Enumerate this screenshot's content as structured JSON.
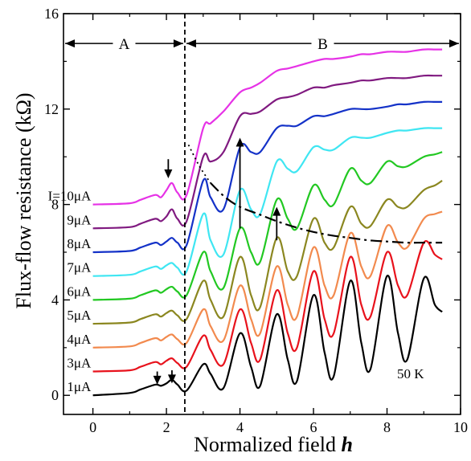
{
  "chart_data": {
    "type": "line",
    "xlabel": "Normalized field h",
    "xlabel_main": "Normalized field ",
    "xlabel_var": "h",
    "ylabel": "Flux-flow resistance (kΩ)",
    "xlim": [
      -0.8,
      10
    ],
    "ylim": [
      -0.8,
      16
    ],
    "xticks": [
      0,
      2,
      4,
      6,
      8,
      10
    ],
    "yticks": [
      0,
      4,
      8,
      12,
      16
    ],
    "grid": false,
    "legend": "none",
    "temperature_label": "50 K",
    "region_A": "A",
    "region_B": "B",
    "region_boundary_h": 2.5,
    "series": [
      {
        "name": "1μA",
        "label": "1μA",
        "baseline": 0.0,
        "color": "#000000",
        "x": [
          0,
          1.0,
          1.3,
          1.7,
          1.85,
          2.0,
          2.15,
          2.3,
          2.55,
          3.0,
          3.2,
          3.55,
          4.0,
          4.3,
          4.55,
          5.0,
          5.3,
          5.55,
          6.0,
          6.3,
          6.55,
          7.0,
          7.3,
          7.55,
          8.0,
          8.3,
          8.55,
          9.0,
          9.3,
          9.5
        ],
        "y": [
          0.0,
          0.1,
          0.25,
          0.45,
          0.4,
          0.5,
          0.65,
          0.45,
          0.2,
          1.3,
          0.9,
          0.3,
          2.6,
          1.2,
          0.4,
          3.4,
          1.5,
          0.6,
          4.2,
          1.8,
          0.8,
          4.8,
          2.2,
          1.1,
          5.0,
          2.6,
          1.5,
          4.9,
          3.8,
          3.5
        ]
      },
      {
        "name": "3μA",
        "label": "3μA",
        "baseline": 1.0,
        "color": "#e8121c",
        "x": [
          0,
          1.0,
          1.3,
          1.7,
          1.85,
          2.0,
          2.15,
          2.3,
          2.55,
          3.0,
          3.2,
          3.55,
          4.0,
          4.3,
          4.55,
          5.0,
          5.3,
          5.55,
          6.0,
          6.3,
          6.55,
          7.0,
          7.3,
          7.55,
          8.0,
          8.3,
          8.55,
          9.0,
          9.3,
          9.5
        ],
        "y": [
          1.0,
          1.05,
          1.2,
          1.4,
          1.3,
          1.45,
          1.55,
          1.35,
          1.2,
          2.5,
          1.9,
          1.3,
          3.6,
          2.2,
          1.5,
          4.4,
          2.6,
          2.0,
          5.2,
          3.2,
          2.6,
          5.8,
          3.8,
          3.3,
          6.0,
          4.6,
          4.2,
          6.4,
          5.9,
          5.7
        ]
      },
      {
        "name": "4μA",
        "label": "4μA",
        "baseline": 2.0,
        "color": "#f28a4e",
        "x": [
          0,
          1.0,
          1.3,
          1.7,
          1.85,
          2.0,
          2.15,
          2.3,
          2.55,
          3.0,
          3.2,
          3.55,
          4.0,
          4.3,
          4.55,
          5.0,
          5.3,
          5.55,
          6.0,
          6.3,
          6.55,
          7.0,
          7.3,
          7.55,
          8.0,
          8.3,
          8.55,
          9.0,
          9.3,
          9.5
        ],
        "y": [
          2.0,
          2.05,
          2.2,
          2.4,
          2.3,
          2.45,
          2.55,
          2.35,
          2.2,
          3.6,
          2.9,
          2.3,
          4.6,
          3.2,
          2.6,
          5.4,
          3.8,
          3.3,
          6.2,
          4.6,
          4.2,
          6.8,
          5.4,
          5.0,
          7.1,
          6.4,
          6.2,
          7.4,
          7.6,
          7.7
        ]
      },
      {
        "name": "5μA",
        "label": "5μA",
        "baseline": 3.0,
        "color": "#8b8720",
        "x": [
          0,
          1.0,
          1.3,
          1.7,
          1.85,
          2.0,
          2.15,
          2.3,
          2.55,
          3.0,
          3.2,
          3.55,
          4.0,
          4.3,
          4.55,
          5.0,
          5.3,
          5.55,
          6.0,
          6.3,
          6.55,
          7.0,
          7.3,
          7.55,
          8.0,
          8.3,
          8.55,
          9.0,
          9.3,
          9.5
        ],
        "y": [
          3.0,
          3.05,
          3.2,
          3.4,
          3.3,
          3.45,
          3.55,
          3.35,
          3.2,
          4.8,
          4.0,
          3.3,
          5.8,
          4.2,
          3.7,
          6.6,
          5.2,
          5.0,
          7.4,
          6.4,
          6.2,
          7.9,
          7.2,
          7.1,
          8.2,
          7.9,
          7.9,
          8.6,
          8.8,
          9.0
        ]
      },
      {
        "name": "6μA",
        "label": "6μA",
        "baseline": 4.0,
        "color": "#22c822",
        "x": [
          0,
          1.0,
          1.3,
          1.7,
          1.85,
          2.0,
          2.15,
          2.3,
          2.55,
          3.0,
          3.2,
          3.55,
          4.0,
          4.3,
          4.55,
          5.0,
          5.3,
          5.55,
          6.0,
          6.3,
          6.55,
          7.0,
          7.3,
          7.55,
          8.0,
          8.3,
          8.55,
          9.0,
          9.3,
          9.5
        ],
        "y": [
          4.0,
          4.05,
          4.2,
          4.4,
          4.3,
          4.45,
          4.55,
          4.35,
          4.2,
          6.0,
          5.2,
          4.5,
          7.0,
          6.0,
          5.6,
          8.2,
          7.4,
          7.0,
          8.8,
          8.2,
          8.0,
          9.5,
          9.0,
          8.9,
          9.8,
          9.6,
          9.6,
          10.0,
          10.1,
          10.2
        ]
      },
      {
        "name": "7μA",
        "label": "7μA",
        "baseline": 5.0,
        "color": "#3fe6f2",
        "x": [
          0,
          1.0,
          1.3,
          1.7,
          1.85,
          2.0,
          2.15,
          2.3,
          2.55,
          3.0,
          3.2,
          3.55,
          4.0,
          4.3,
          4.55,
          5.0,
          5.3,
          5.55,
          6.0,
          6.3,
          6.55,
          7.0,
          7.3,
          7.55,
          8.0,
          8.3,
          8.55,
          9.0,
          9.3,
          9.5
        ],
        "y": [
          5.0,
          5.05,
          5.2,
          5.4,
          5.3,
          5.45,
          5.55,
          5.35,
          5.2,
          7.6,
          6.5,
          5.9,
          8.6,
          7.8,
          7.6,
          9.8,
          9.5,
          9.4,
          10.4,
          10.3,
          10.3,
          10.8,
          10.8,
          10.8,
          11.0,
          11.1,
          11.1,
          11.2,
          11.2,
          11.2
        ]
      },
      {
        "name": "8μA",
        "label": "8μA",
        "baseline": 6.0,
        "color": "#1432c8",
        "x": [
          0,
          1.0,
          1.3,
          1.7,
          1.85,
          2.0,
          2.15,
          2.3,
          2.55,
          3.0,
          3.2,
          3.55,
          4.0,
          4.3,
          4.55,
          5.0,
          5.3,
          5.55,
          6.0,
          6.3,
          6.55,
          7.0,
          7.3,
          7.55,
          8.0,
          8.3,
          8.55,
          9.0,
          9.3,
          9.5
        ],
        "y": [
          6.0,
          6.05,
          6.2,
          6.4,
          6.3,
          6.45,
          6.6,
          6.4,
          6.3,
          9.0,
          8.3,
          7.8,
          10.4,
          10.2,
          10.2,
          11.2,
          11.3,
          11.3,
          11.7,
          11.7,
          11.8,
          12.0,
          12.0,
          12.0,
          12.1,
          12.2,
          12.2,
          12.3,
          12.3,
          12.3
        ]
      },
      {
        "name": "9μA",
        "label": "9μA",
        "baseline": 7.0,
        "color": "#801a80",
        "x": [
          0,
          1.0,
          1.3,
          1.7,
          1.85,
          2.0,
          2.15,
          2.3,
          2.55,
          3.0,
          3.2,
          3.55,
          4.0,
          4.3,
          4.55,
          5.0,
          5.3,
          5.55,
          6.0,
          6.3,
          6.55,
          7.0,
          7.3,
          7.55,
          8.0,
          8.3,
          8.55,
          9.0,
          9.3,
          9.5
        ],
        "y": [
          7.0,
          7.05,
          7.2,
          7.4,
          7.3,
          7.5,
          7.8,
          7.4,
          7.3,
          10.0,
          9.8,
          10.2,
          11.7,
          11.8,
          11.9,
          12.4,
          12.5,
          12.6,
          12.9,
          12.9,
          13.0,
          13.1,
          13.2,
          13.2,
          13.3,
          13.3,
          13.3,
          13.4,
          13.4,
          13.4
        ]
      },
      {
        "name": "I=10μA",
        "label": "I=10μA",
        "baseline": 8.0,
        "color": "#e632e6",
        "x": [
          0,
          1.0,
          1.3,
          1.7,
          1.85,
          2.0,
          2.15,
          2.3,
          2.55,
          3.0,
          3.2,
          3.55,
          4.0,
          4.3,
          4.55,
          5.0,
          5.3,
          5.55,
          6.0,
          6.3,
          6.55,
          7.0,
          7.3,
          7.55,
          8.0,
          8.3,
          8.55,
          9.0,
          9.3,
          9.5
        ],
        "y": [
          8.0,
          8.05,
          8.2,
          8.4,
          8.3,
          8.6,
          8.9,
          8.5,
          8.4,
          11.2,
          11.4,
          11.9,
          12.7,
          12.9,
          13.1,
          13.6,
          13.7,
          13.8,
          14.0,
          14.1,
          14.1,
          14.2,
          14.3,
          14.3,
          14.4,
          14.4,
          14.4,
          14.5,
          14.5,
          14.5
        ]
      }
    ],
    "guide_curve": {
      "x": [
        2.6,
        2.9,
        3.2,
        3.6,
        4.0,
        4.5,
        5.0,
        5.5,
        6.0,
        6.5,
        7.0,
        7.5,
        8.0,
        8.5,
        9.0,
        9.5
      ],
      "y": [
        10.5,
        9.6,
        8.9,
        8.3,
        7.9,
        7.6,
        7.3,
        7.05,
        6.85,
        6.7,
        6.6,
        6.5,
        6.45,
        6.4,
        6.4,
        6.4
      ]
    },
    "arrows": [
      {
        "x": 2.05,
        "from": 9.9,
        "to": 9.1,
        "dir": "down"
      },
      {
        "x": 1.75,
        "from": 1.0,
        "to": 0.45,
        "dir": "down"
      },
      {
        "x": 2.15,
        "from": 1.05,
        "to": 0.5,
        "dir": "down"
      },
      {
        "x": 4.0,
        "from": 7.0,
        "to": 10.8,
        "dir": "up"
      },
      {
        "x": 5.0,
        "from": 6.5,
        "to": 7.9,
        "dir": "up"
      }
    ]
  }
}
